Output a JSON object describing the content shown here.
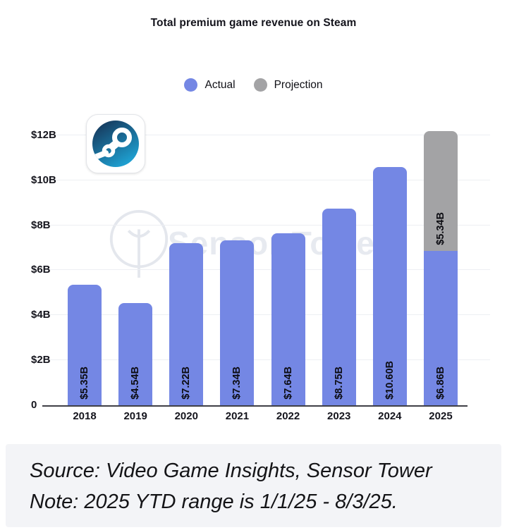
{
  "watermark_text": "Sensor Tower",
  "icons": {
    "chart_logo": "steam-logo",
    "watermark_logo": "sensor-tower-logo"
  },
  "footer": {
    "line1": "Source: Video Game Insights, Sensor Tower",
    "line2": "Note: 2025 YTD range is 1/1/25 - 8/3/25."
  },
  "chart_data": {
    "type": "bar",
    "stacked": true,
    "title": "Total premium game revenue on Steam",
    "categories": [
      "2018",
      "2019",
      "2020",
      "2021",
      "2022",
      "2023",
      "2024",
      "2025"
    ],
    "series": [
      {
        "name": "Actual",
        "color": "#7487e4",
        "values": [
          5.35,
          4.54,
          7.22,
          7.34,
          7.64,
          8.75,
          10.6,
          6.86
        ],
        "labels": [
          "$5.35B",
          "$4.54B",
          "$7.22B",
          "$7.34B",
          "$7.64B",
          "$8.75B",
          "$10.60B",
          "$6.86B"
        ]
      },
      {
        "name": "Projection",
        "color": "#a3a3a5",
        "values": [
          0,
          0,
          0,
          0,
          0,
          0,
          0,
          5.34
        ],
        "labels": [
          "",
          "",
          "",
          "",
          "",
          "",
          "",
          "$5.34B"
        ]
      }
    ],
    "xlabel": "",
    "ylabel": "",
    "ylim": [
      0,
      13.0
    ],
    "yticks": [
      {
        "value": 0,
        "label": "0"
      },
      {
        "value": 2,
        "label": "$2B"
      },
      {
        "value": 4,
        "label": "$4B"
      },
      {
        "value": 6,
        "label": "$6B"
      },
      {
        "value": 8,
        "label": "$8B"
      },
      {
        "value": 10,
        "label": "$10B"
      },
      {
        "value": 12,
        "label": "$12B"
      }
    ],
    "grid": true,
    "legend_position": "top-center",
    "note": "2025 bar is stacked: $6.86B actual + $5.34B projection"
  }
}
